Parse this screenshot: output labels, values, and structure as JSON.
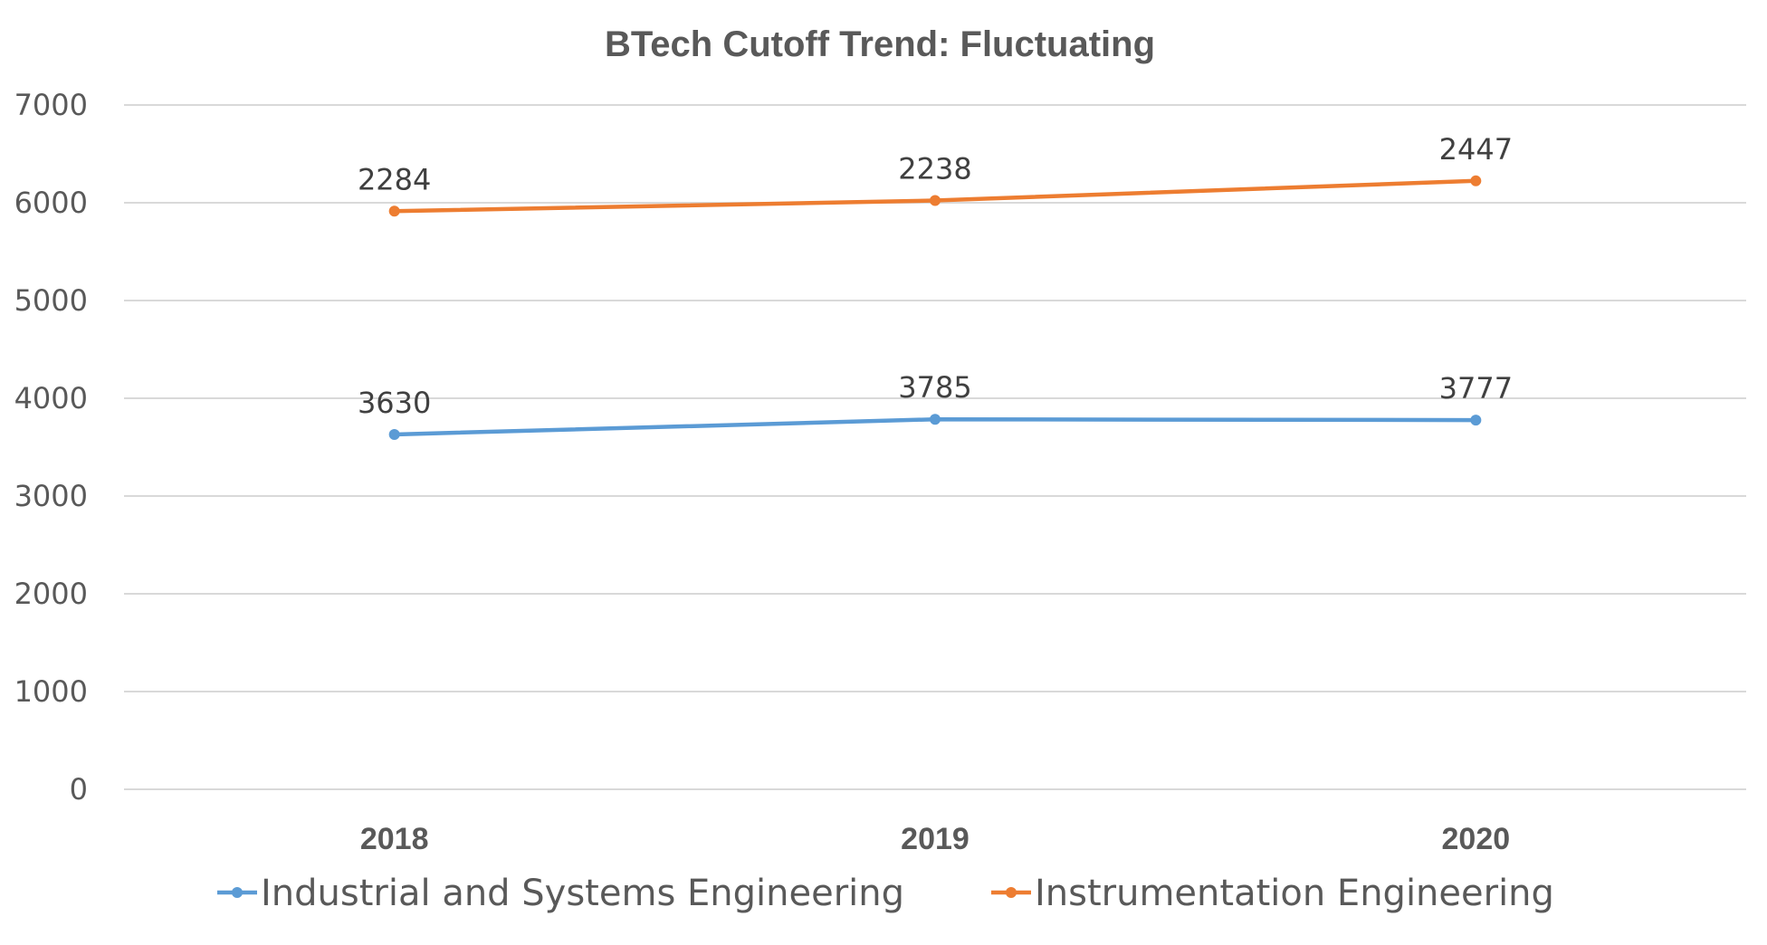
{
  "chart_data": {
    "type": "line",
    "stacked": true,
    "title": "BTech Cutoff Trend: Fluctuating",
    "xlabel": "",
    "ylabel": "",
    "categories": [
      "2018",
      "2019",
      "2020"
    ],
    "ylim": [
      0,
      7000
    ],
    "yticks": [
      0,
      1000,
      2000,
      3000,
      4000,
      5000,
      6000,
      7000
    ],
    "grid": true,
    "legend_position": "bottom",
    "series": [
      {
        "name": "Industrial and Systems Engineering",
        "values": [
          3630,
          3785,
          3777
        ],
        "color": "#5B9BD5"
      },
      {
        "name": "Instrumentation Engineering",
        "values": [
          2284,
          2238,
          2447
        ],
        "color": "#ED7D31"
      }
    ]
  }
}
